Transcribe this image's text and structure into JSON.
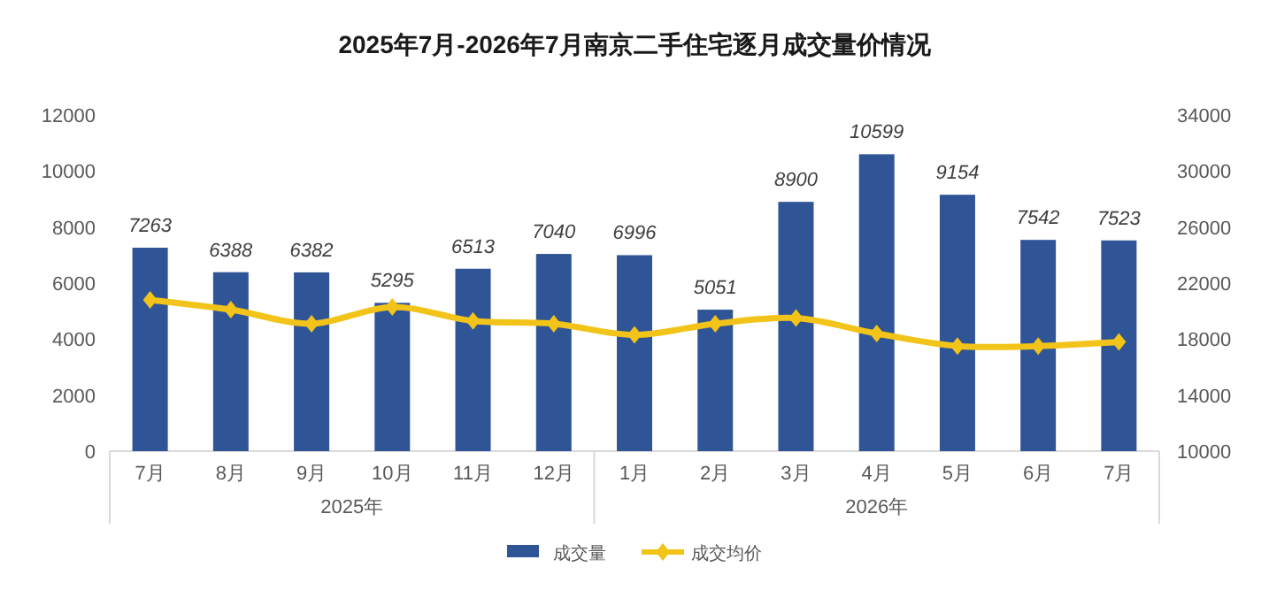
{
  "chart_data": {
    "type": "bar",
    "title": "2025年7月-2026年7月南京二手住宅逐月成交量价情况",
    "categories": [
      "7月",
      "8月",
      "9月",
      "10月",
      "11月",
      "12月",
      "1月",
      "2月",
      "3月",
      "4月",
      "5月",
      "6月",
      "7月"
    ],
    "annotations": [
      "2025年",
      "2026年"
    ],
    "series": [
      {
        "name": "成交量",
        "color": "#2f5597",
        "values": [
          7263,
          6388,
          6382,
          5295,
          6513,
          7040,
          6996,
          5051,
          8900,
          10599,
          9154,
          7542,
          7523
        ],
        "value_labels": [
          "7263",
          "6388",
          "6382",
          "5295",
          "6513",
          "7040",
          "6996",
          "5051",
          "8900",
          "10599",
          "9154",
          "7542",
          "7523"
        ]
      },
      {
        "name": "成交均价",
        "type": "line",
        "axis": "y2",
        "color": "#f2c318",
        "marker": "diamond",
        "values": [
          20800,
          20100,
          19100,
          20300,
          19300,
          19100,
          18300,
          19100,
          19500,
          18400,
          17500,
          17500,
          17800
        ]
      }
    ],
    "ylim": [
      0,
      12000
    ],
    "yticks": [
      0,
      2000,
      4000,
      6000,
      8000,
      10000,
      12000
    ],
    "y2lim": [
      10000,
      34000
    ],
    "y2ticks": [
      10000,
      14000,
      18000,
      22000,
      26000,
      30000,
      34000
    ],
    "grid": false,
    "legend": "bottom"
  }
}
